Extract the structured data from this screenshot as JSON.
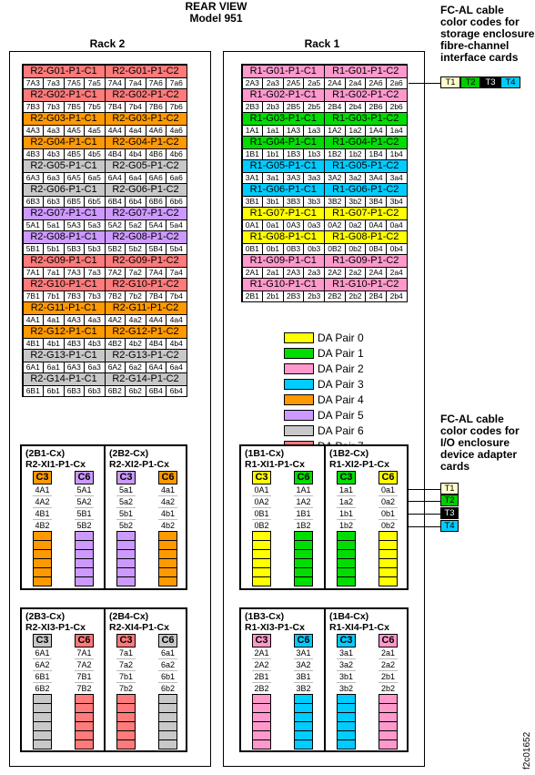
{
  "title": [
    "REAR VIEW",
    "Model 951"
  ],
  "racks": [
    {
      "label": "Rack 2"
    },
    {
      "label": "Rack 1"
    }
  ],
  "colors": {
    "pair0": "#ffff00",
    "pair1": "#00dd00",
    "pair2": "#ff99cc",
    "pair3": "#00ccff",
    "pair4": "#ff9900",
    "pair5": "#cc99ff",
    "pair6": "#c8c8c8",
    "pair7": "#ff7a7a",
    "t3": "#000000"
  },
  "rack2_enclosures": [
    {
      "c1": "R2-G01-P1-C1",
      "c2": "R2-G01-P1-C2",
      "ports": [
        "7A3",
        "7a3",
        "7A5",
        "7a5",
        "7A4",
        "7a4",
        "7A6",
        "7a6"
      ],
      "pair": 7
    },
    {
      "c1": "R2-G02-P1-C1",
      "c2": "R2-G02-P1-C2",
      "ports": [
        "7B3",
        "7b3",
        "7B5",
        "7b5",
        "7B4",
        "7b4",
        "7B6",
        "7b6"
      ],
      "pair": 7
    },
    {
      "c1": "R2-G03-P1-C1",
      "c2": "R2-G03-P1-C2",
      "ports": [
        "4A3",
        "4a3",
        "4A5",
        "4a5",
        "4A4",
        "4a4",
        "4A6",
        "4a6"
      ],
      "pair": 4
    },
    {
      "c1": "R2-G04-P1-C1",
      "c2": "R2-G04-P1-C2",
      "ports": [
        "4B3",
        "4b3",
        "4B5",
        "4b5",
        "4B4",
        "4b4",
        "4B6",
        "4b6"
      ],
      "pair": 4
    },
    {
      "c1": "R2-G05-P1-C1",
      "c2": "R2-G05-P1-C2",
      "ports": [
        "6A3",
        "6a3",
        "6A5",
        "6a5",
        "6A4",
        "6a4",
        "6A6",
        "6a6"
      ],
      "pair": 6
    },
    {
      "c1": "R2-G06-P1-C1",
      "c2": "R2-G06-P1-C2",
      "ports": [
        "6B3",
        "6b3",
        "6B5",
        "6b5",
        "6B4",
        "6b4",
        "6B6",
        "6b6"
      ],
      "pair": 6
    },
    {
      "c1": "R2-G07-P1-C1",
      "c2": "R2-G07-P1-C2",
      "ports": [
        "5A1",
        "5a1",
        "5A3",
        "5a3",
        "5A2",
        "5a2",
        "5A4",
        "5a4"
      ],
      "pair": 5
    },
    {
      "c1": "R2-G08-P1-C1",
      "c2": "R2-G08-P1-C2",
      "ports": [
        "5B1",
        "5b1",
        "5B3",
        "5b3",
        "5B2",
        "5b2",
        "5B4",
        "5b4"
      ],
      "pair": 5
    },
    {
      "c1": "R2-G09-P1-C1",
      "c2": "R2-G09-P1-C2",
      "ports": [
        "7A1",
        "7a1",
        "7A3",
        "7a3",
        "7A2",
        "7a2",
        "7A4",
        "7a4"
      ],
      "pair": 7
    },
    {
      "c1": "R2-G10-P1-C1",
      "c2": "R2-G10-P1-C2",
      "ports": [
        "7B1",
        "7b1",
        "7B3",
        "7b3",
        "7B2",
        "7b2",
        "7B4",
        "7b4"
      ],
      "pair": 7
    },
    {
      "c1": "R2-G11-P1-C1",
      "c2": "R2-G11-P1-C2",
      "ports": [
        "4A1",
        "4a1",
        "4A3",
        "4a3",
        "4A2",
        "4a2",
        "4A4",
        "4a4"
      ],
      "pair": 4
    },
    {
      "c1": "R2-G12-P1-C1",
      "c2": "R2-G12-P1-C2",
      "ports": [
        "4B1",
        "4b1",
        "4B3",
        "4b3",
        "4B2",
        "4b2",
        "4B4",
        "4b4"
      ],
      "pair": 4
    },
    {
      "c1": "R2-G13-P1-C1",
      "c2": "R2-G13-P1-C2",
      "ports": [
        "6A1",
        "6a1",
        "6A3",
        "6a3",
        "6A2",
        "6a2",
        "6A4",
        "6a4"
      ],
      "pair": 6
    },
    {
      "c1": "R2-G14-P1-C1",
      "c2": "R2-G14-P1-C2",
      "ports": [
        "6B1",
        "6b1",
        "6B3",
        "6b3",
        "6B2",
        "6b2",
        "6B4",
        "6b4"
      ],
      "pair": 6
    }
  ],
  "rack1_enclosures": [
    {
      "c1": "R1-G01-P1-C1",
      "c2": "R1-G01-P1-C2",
      "ports": [
        "2A3",
        "2a3",
        "2A5",
        "2a5",
        "2A4",
        "2a4",
        "2A6",
        "2a6"
      ],
      "pair": 2
    },
    {
      "c1": "R1-G02-P1-C1",
      "c2": "R1-G02-P1-C2",
      "ports": [
        "2B3",
        "2b3",
        "2B5",
        "2b5",
        "2B4",
        "2b4",
        "2B6",
        "2b6"
      ],
      "pair": 2
    },
    {
      "c1": "R1-G03-P1-C1",
      "c2": "R1-G03-P1-C2",
      "ports": [
        "1A1",
        "1a1",
        "1A3",
        "1a3",
        "1A2",
        "1a2",
        "1A4",
        "1a4"
      ],
      "pair": 1
    },
    {
      "c1": "R1-G04-P1-C1",
      "c2": "R1-G04-P1-C2",
      "ports": [
        "1B1",
        "1b1",
        "1B3",
        "1b3",
        "1B2",
        "1b2",
        "1B4",
        "1b4"
      ],
      "pair": 1
    },
    {
      "c1": "R1-G05-P1-C1",
      "c2": "R1-G05-P1-C2",
      "ports": [
        "3A1",
        "3a1",
        "3A3",
        "3a3",
        "3A2",
        "3a2",
        "3A4",
        "3a4"
      ],
      "pair": 3
    },
    {
      "c1": "R1-G06-P1-C1",
      "c2": "R1-G06-P1-C2",
      "ports": [
        "3B1",
        "3b1",
        "3B3",
        "3b3",
        "3B2",
        "3b2",
        "3B4",
        "3b4"
      ],
      "pair": 3
    },
    {
      "c1": "R1-G07-P1-C1",
      "c2": "R1-G07-P1-C2",
      "ports": [
        "0A1",
        "0a1",
        "0A3",
        "0a3",
        "0A2",
        "0a2",
        "0A4",
        "0a4"
      ],
      "pair": 0
    },
    {
      "c1": "R1-G08-P1-C1",
      "c2": "R1-G08-P1-C2",
      "ports": [
        "0B1",
        "0b1",
        "0B3",
        "0b3",
        "0B2",
        "0b2",
        "0B4",
        "0b4"
      ],
      "pair": 0
    },
    {
      "c1": "R1-G09-P1-C1",
      "c2": "R1-G09-P1-C2",
      "ports": [
        "2A1",
        "2a1",
        "2A3",
        "2a3",
        "2A2",
        "2a2",
        "2A4",
        "2a4"
      ],
      "pair": 2
    },
    {
      "c1": "R1-G10-P1-C1",
      "c2": "R1-G10-P1-C2",
      "ports": [
        "2B1",
        "2b1",
        "2B3",
        "2b3",
        "2B2",
        "2b2",
        "2B4",
        "2b4"
      ],
      "pair": 2
    }
  ],
  "legend": [
    {
      "label": "DA Pair 0",
      "pair": 0
    },
    {
      "label": "DA Pair 1",
      "pair": 1
    },
    {
      "label": "DA Pair 2",
      "pair": 2
    },
    {
      "label": "DA Pair 3",
      "pair": 3
    },
    {
      "label": "DA Pair 4",
      "pair": 4
    },
    {
      "label": "DA Pair 5",
      "pair": 5
    },
    {
      "label": "DA Pair 6",
      "pair": 6
    },
    {
      "label": "DA Pair 7",
      "pair": 7
    }
  ],
  "io_groups": [
    {
      "id": "rack2-top",
      "halves": [
        {
          "label1": "(2B1-Cx)",
          "label2": "R2-XI1-P1-Cx",
          "cols": [
            {
              "head": "C3",
              "pair": 4,
              "ports": [
                "4A1",
                "4A2",
                "4B1",
                "4B2"
              ]
            },
            {
              "head": "C6",
              "pair": 5,
              "ports": [
                "5A1",
                "5A2",
                "5B1",
                "5B2"
              ]
            }
          ]
        },
        {
          "label1": "(2B2-Cx)",
          "label2": "R2-XI2-P1-Cx",
          "cols": [
            {
              "head": "C3",
              "pair": 5,
              "ports": [
                "5a1",
                "5a2",
                "5b1",
                "5b2"
              ]
            },
            {
              "head": "C6",
              "pair": 4,
              "ports": [
                "4a1",
                "4a2",
                "4b1",
                "4b2"
              ]
            }
          ]
        }
      ]
    },
    {
      "id": "rack1-top",
      "halves": [
        {
          "label1": "(1B1-Cx)",
          "label2": "R1-XI1-P1-Cx",
          "cols": [
            {
              "head": "C3",
              "pair": 0,
              "ports": [
                "0A1",
                "0A2",
                "0B1",
                "0B2"
              ]
            },
            {
              "head": "C6",
              "pair": 1,
              "ports": [
                "1A1",
                "1A2",
                "1B1",
                "1B2"
              ]
            }
          ]
        },
        {
          "label1": "(1B2-Cx)",
          "label2": "R1-XI2-P1-Cx",
          "cols": [
            {
              "head": "C3",
              "pair": 1,
              "ports": [
                "1a1",
                "1a2",
                "1b1",
                "1b2"
              ]
            },
            {
              "head": "C6",
              "pair": 0,
              "ports": [
                "0a1",
                "0a2",
                "0b1",
                "0b2"
              ]
            }
          ]
        }
      ]
    },
    {
      "id": "rack2-bottom",
      "halves": [
        {
          "label1": "(2B3-Cx)",
          "label2": "R2-XI3-P1-Cx",
          "cols": [
            {
              "head": "C3",
              "pair": 6,
              "ports": [
                "6A1",
                "6A2",
                "6B1",
                "6B2"
              ]
            },
            {
              "head": "C6",
              "pair": 7,
              "ports": [
                "7A1",
                "7A2",
                "7B1",
                "7B2"
              ]
            }
          ]
        },
        {
          "label1": "(2B4-Cx)",
          "label2": "R2-XI4-P1-Cx",
          "cols": [
            {
              "head": "C3",
              "pair": 7,
              "ports": [
                "7a1",
                "7a2",
                "7b1",
                "7b2"
              ]
            },
            {
              "head": "C6",
              "pair": 6,
              "ports": [
                "6a1",
                "6a2",
                "6b1",
                "6b2"
              ]
            }
          ]
        }
      ]
    },
    {
      "id": "rack1-bottom",
      "halves": [
        {
          "label1": "(1B3-Cx)",
          "label2": "R1-XI3-P1-Cx",
          "cols": [
            {
              "head": "C3",
              "pair": 2,
              "ports": [
                "2A1",
                "2A2",
                "2B1",
                "2B2"
              ]
            },
            {
              "head": "C6",
              "pair": 3,
              "ports": [
                "3A1",
                "3A2",
                "3B1",
                "3B2"
              ]
            }
          ]
        },
        {
          "label1": "(1B4-Cx)",
          "label2": "R1-XI4-P1-Cx",
          "cols": [
            {
              "head": "C3",
              "pair": 3,
              "ports": [
                "3a1",
                "3a2",
                "3b1",
                "3b2"
              ]
            },
            {
              "head": "C6",
              "pair": 2,
              "ports": [
                "2a1",
                "2a2",
                "2b1",
                "2b2"
              ]
            }
          ]
        }
      ]
    }
  ],
  "note_top": [
    "FC-AL cable",
    "color codes for",
    "storage enclosure",
    "fibre-channel",
    "interface cards"
  ],
  "note_bottom": [
    "FC-AL cable",
    "color codes for",
    "I/O enclosure",
    "device adapter",
    "cards"
  ],
  "cable_codes": [
    {
      "label": "T1",
      "color": "#ffffcc",
      "text": "#000000"
    },
    {
      "label": "T2",
      "color": "#00cc00",
      "text": "#000000"
    },
    {
      "label": "T3",
      "color": "#000000",
      "text": "#ffffff"
    },
    {
      "label": "T4",
      "color": "#00ccff",
      "text": "#000000"
    }
  ],
  "figure_id": "f2c01652"
}
